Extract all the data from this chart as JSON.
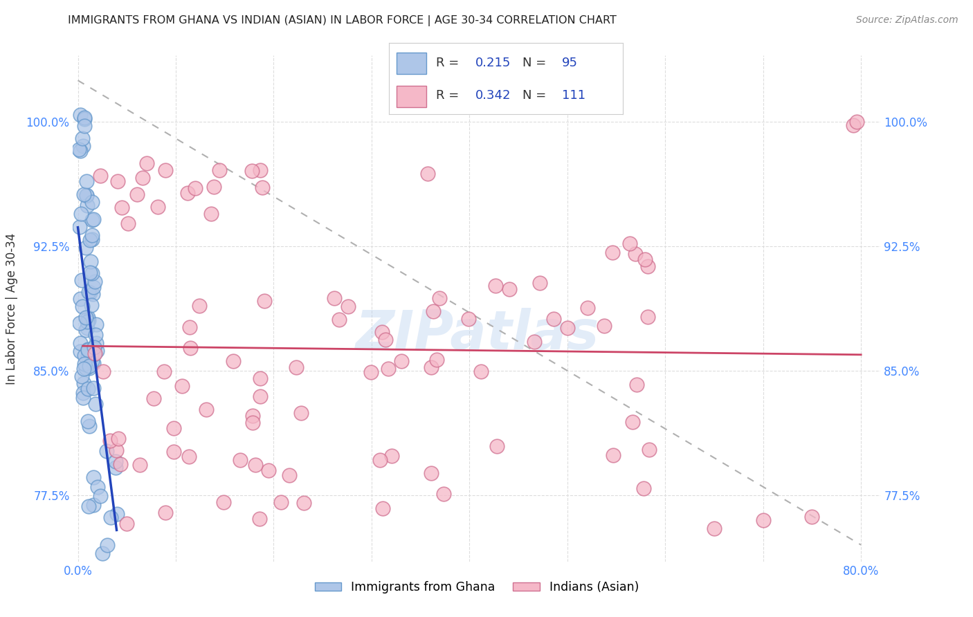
{
  "title": "IMMIGRANTS FROM GHANA VS INDIAN (ASIAN) IN LABOR FORCE | AGE 30-34 CORRELATION CHART",
  "source": "Source: ZipAtlas.com",
  "ylabel": "In Labor Force | Age 30-34",
  "xlim": [
    -0.005,
    0.82
  ],
  "ylim": [
    0.735,
    1.04
  ],
  "yticks": [
    0.775,
    0.85,
    0.925,
    1.0
  ],
  "ytick_labels": [
    "77.5%",
    "85.0%",
    "92.5%",
    "100.0%"
  ],
  "xtick_positions": [
    0.0,
    0.1,
    0.2,
    0.3,
    0.4,
    0.5,
    0.6,
    0.7,
    0.8
  ],
  "xtick_labels": [
    "0.0%",
    "",
    "",
    "",
    "",
    "",
    "",
    "",
    "80.0%"
  ],
  "ghana_fill": "#aec6e8",
  "ghana_edge": "#6699cc",
  "indian_fill": "#f5b8c8",
  "indian_edge": "#d07090",
  "ghana_line": "#2244bb",
  "indian_line": "#cc4466",
  "ref_line": "#b0b0b0",
  "legend_r_ghana": "0.215",
  "legend_n_ghana": "95",
  "legend_r_indian": "0.342",
  "legend_n_indian": "111",
  "label_ghana": "Immigrants from Ghana",
  "label_indian": "Indians (Asian)",
  "watermark": "ZIPatlas",
  "title_color": "#222222",
  "source_color": "#888888",
  "axis_label_color": "#333333",
  "tick_color": "#4488ff",
  "grid_color": "#dddddd",
  "background_color": "#ffffff"
}
